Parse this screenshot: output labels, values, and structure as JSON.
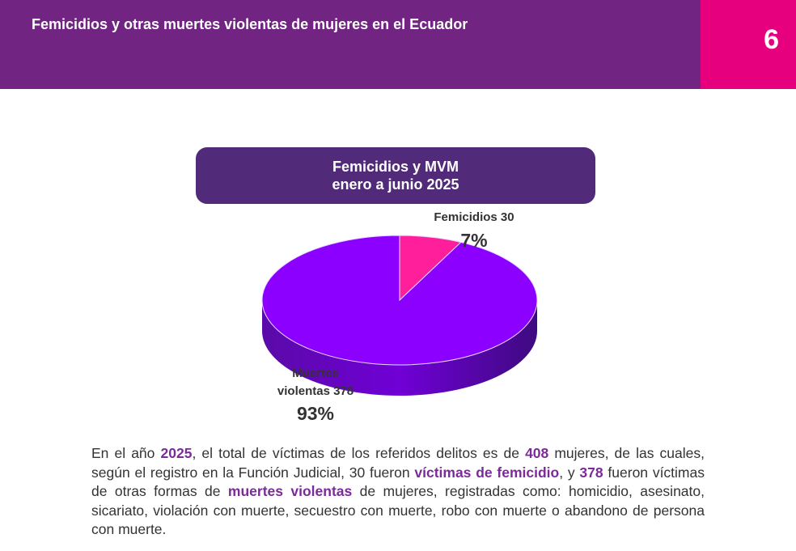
{
  "header": {
    "title": "Femicidios y otras muertes violentas de mujeres en el Ecuador",
    "page_number": "6"
  },
  "chart_data": {
    "type": "pie",
    "title_line1": "Femicidios y MVM",
    "title_line2": "enero a junio 2025",
    "slices": [
      {
        "label": "Femicidios 30",
        "value": 30,
        "percent_label": "7%",
        "color": "#ff1f9a"
      },
      {
        "label_line1": "Muertes",
        "label_line2": "violentas 378",
        "value": 378,
        "percent_label": "93%",
        "color": "#8b00ff"
      }
    ]
  },
  "paragraph": {
    "p1": "En el año ",
    "year": "2025",
    "p2": ", el total de víctimas de los referidos delitos es de ",
    "total": "408",
    "p3": " mujeres, de las cuales, según el registro en la Función Judicial, 30 fueron ",
    "femicidio_phrase": "víctimas de femicidio",
    "p4": ", y ",
    "violent_count": "378",
    "p5": " fueron víctimas de otras formas de ",
    "mv_phrase": "muertes violentas",
    "p6": " de mujeres, registradas como: homicidio, asesinato, sicariato, violación con muerte, secuestro con muerte, robo con muerte o abandono de persona con muerte."
  }
}
